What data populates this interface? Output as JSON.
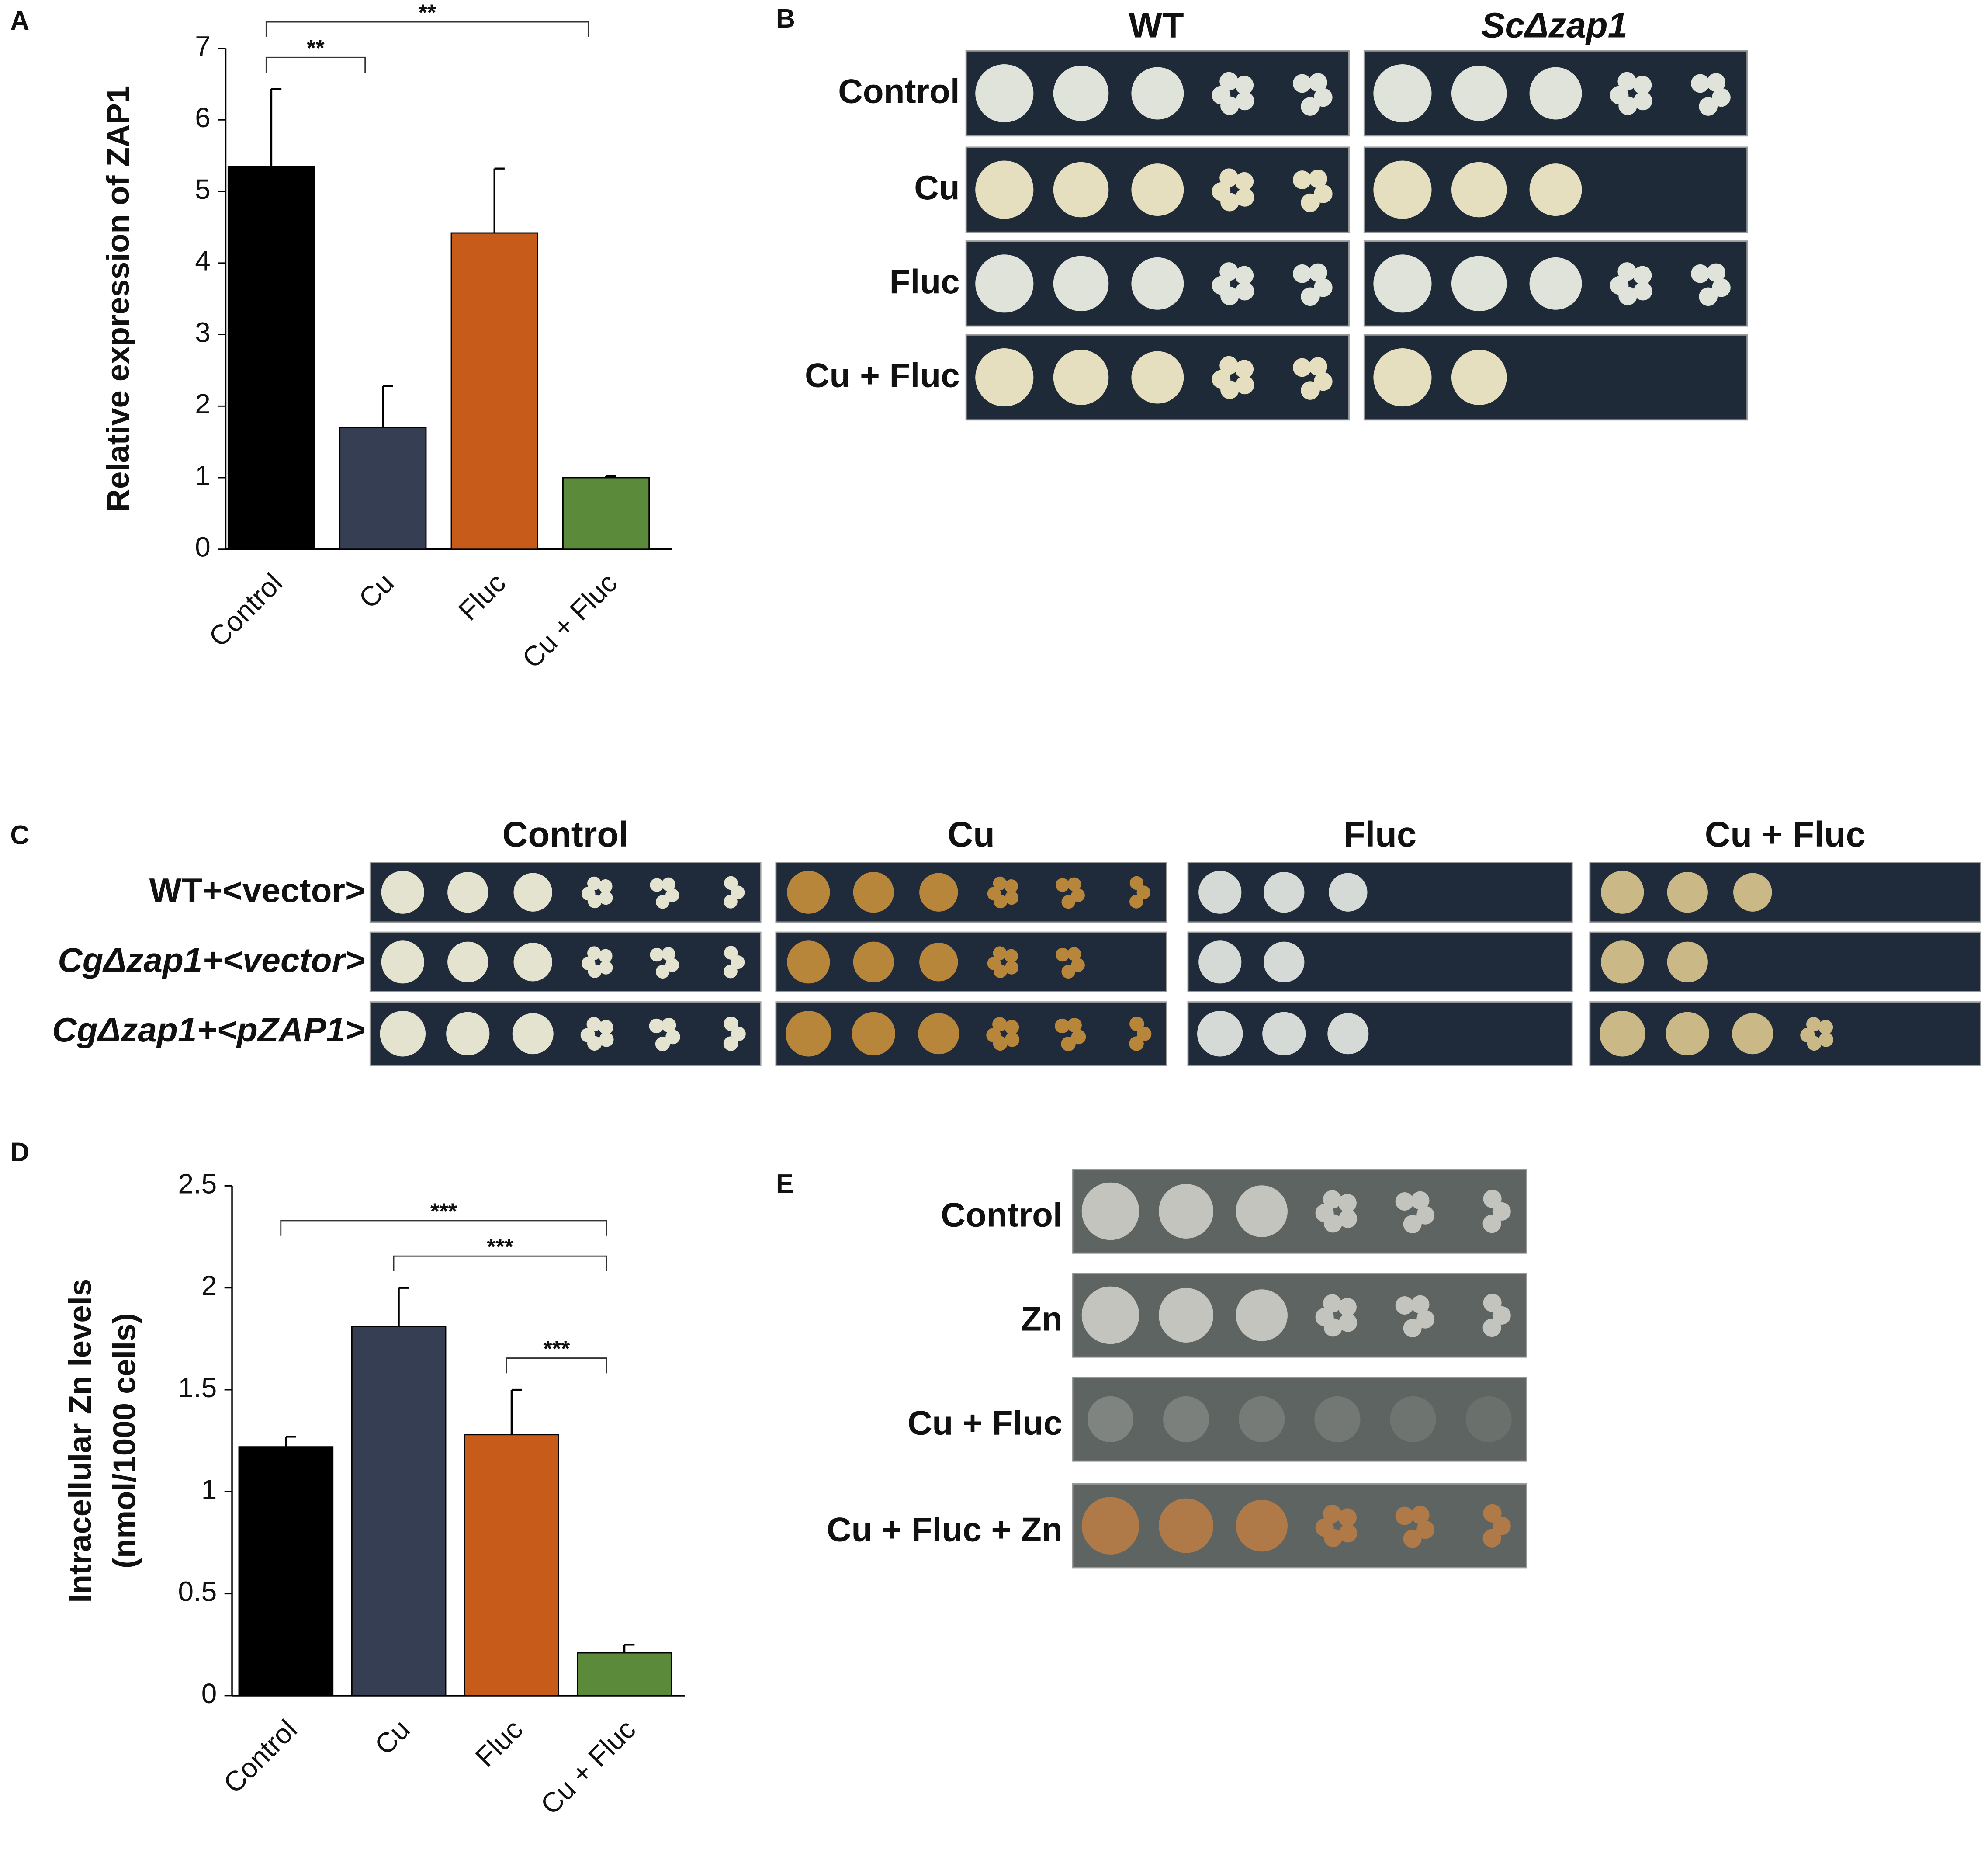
{
  "chart_data": [
    {
      "type": "bar",
      "panel_label": "A",
      "ylabel": "Relative expression of ZAP1",
      "categories": [
        "Control",
        "Cu",
        "Fluc",
        "Cu + Fluc"
      ],
      "values": [
        5.35,
        1.7,
        4.42,
        1.0
      ],
      "errors": [
        1.08,
        0.58,
        0.9,
        0.02
      ],
      "colors": [
        "#000000",
        "#353e52",
        "#c65b1a",
        "#5a8a3a"
      ],
      "ylim": [
        0,
        7
      ],
      "yticks": [
        0,
        1,
        2,
        3,
        4,
        5,
        6,
        7
      ],
      "grid": false,
      "significance": [
        {
          "label": "**",
          "between": [
            "Control",
            "Cu + Fluc"
          ]
        },
        {
          "label": "**",
          "between": [
            "Control",
            "Cu"
          ]
        }
      ]
    },
    {
      "type": "bar",
      "panel_label": "D",
      "ylabel": [
        "Intracellular Zn levels",
        "(nmol/1000 cells)"
      ],
      "categories": [
        "Control",
        "Cu",
        "Fluc",
        "Cu + Fluc"
      ],
      "values": [
        1.22,
        1.81,
        1.28,
        0.21
      ],
      "errors": [
        0.05,
        0.19,
        0.22,
        0.04
      ],
      "colors": [
        "#000000",
        "#353e52",
        "#c65b1a",
        "#5a8a3a"
      ],
      "ylim": [
        0,
        2.5
      ],
      "yticks": [
        0,
        0.5,
        1,
        1.5,
        2,
        2.5
      ],
      "grid": false,
      "significance": [
        {
          "label": "***",
          "between": [
            "Control",
            "Cu + Fluc"
          ]
        },
        {
          "label": "***",
          "between": [
            "Cu",
            "Cu + Fluc"
          ]
        },
        {
          "label": "***",
          "between": [
            "Fluc",
            "Cu + Fluc"
          ]
        }
      ]
    }
  ],
  "panel_b": {
    "panel_label": "B",
    "columns": [
      "WT",
      "ScΔzap1"
    ],
    "rows": [
      "Control",
      "Cu",
      "Fluc",
      "Cu + Fluc"
    ]
  },
  "panel_c": {
    "panel_label": "C",
    "columns": [
      "Control",
      "Cu",
      "Fluc",
      "Cu + Fluc"
    ],
    "rows": [
      "WT+<vector>",
      "CgΔzap1+<vector>",
      "CgΔzap1+<pZAP1>"
    ]
  },
  "panel_e": {
    "panel_label": "E",
    "rows": [
      "Control",
      "Zn",
      "Cu + Fluc",
      "Cu + Fluc + Zn"
    ]
  }
}
